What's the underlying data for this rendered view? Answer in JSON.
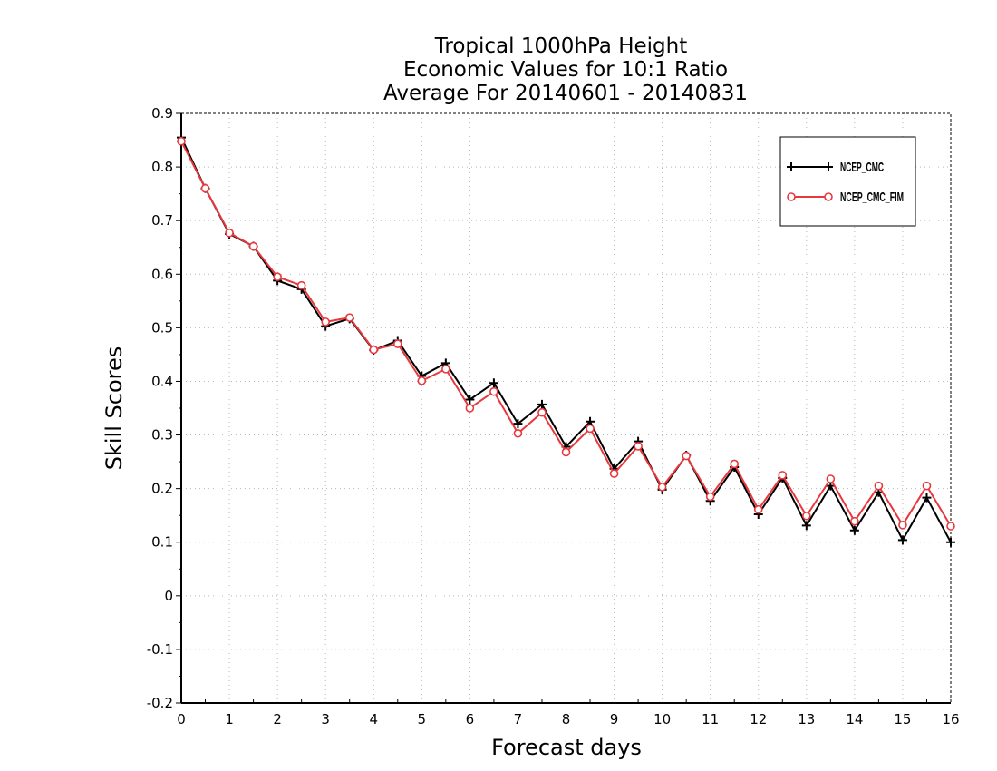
{
  "chart_data": {
    "type": "line",
    "title": [
      "Tropical 1000hPa Height",
      "Economic Values for 10:1 Ratio",
      "Average For 20140601 - 20140831"
    ],
    "xlabel": "Forecast days",
    "ylabel": "Skill Scores",
    "xlim": [
      0,
      16
    ],
    "ylim": [
      -0.2,
      0.9
    ],
    "x_ticks": [
      "0",
      "1",
      "2",
      "3",
      "4",
      "5",
      "6",
      "7",
      "8",
      "9",
      "10",
      "11",
      "12",
      "13",
      "14",
      "15",
      "16"
    ],
    "y_ticks": [
      "-0.2",
      "-0.1",
      "0",
      "0.1",
      "0.2",
      "0.3",
      "0.4",
      "0.5",
      "0.6",
      "0.7",
      "0.8",
      "0.9"
    ],
    "grid": true,
    "legend_position": "top-right",
    "x": [
      0,
      0.5,
      1,
      1.5,
      2,
      2.5,
      3,
      3.5,
      4,
      4.5,
      5,
      5.5,
      6,
      6.5,
      7,
      7.5,
      8,
      8.5,
      9,
      9.5,
      10,
      10.5,
      11,
      11.5,
      12,
      12.5,
      13,
      13.5,
      14,
      14.5,
      15,
      15.5,
      16
    ],
    "series": [
      {
        "name": "NCEP_CMC",
        "color": "#000000",
        "marker": "plus",
        "values": [
          0.855,
          0.76,
          0.675,
          0.652,
          0.588,
          0.572,
          0.503,
          0.517,
          0.458,
          0.476,
          0.41,
          0.434,
          0.366,
          0.397,
          0.321,
          0.357,
          0.278,
          0.325,
          0.237,
          0.288,
          0.198,
          0.262,
          0.177,
          0.24,
          0.152,
          0.22,
          0.131,
          0.205,
          0.122,
          0.193,
          0.104,
          0.183,
          0.1
        ]
      },
      {
        "name": "NCEP_CMC_FIM",
        "color": "#e8383d",
        "marker": "circle",
        "values": [
          0.848,
          0.76,
          0.677,
          0.652,
          0.595,
          0.579,
          0.511,
          0.519,
          0.459,
          0.47,
          0.401,
          0.423,
          0.35,
          0.381,
          0.303,
          0.342,
          0.268,
          0.312,
          0.228,
          0.279,
          0.203,
          0.261,
          0.185,
          0.246,
          0.161,
          0.225,
          0.149,
          0.218,
          0.139,
          0.205,
          0.132,
          0.205,
          0.13
        ]
      }
    ]
  }
}
